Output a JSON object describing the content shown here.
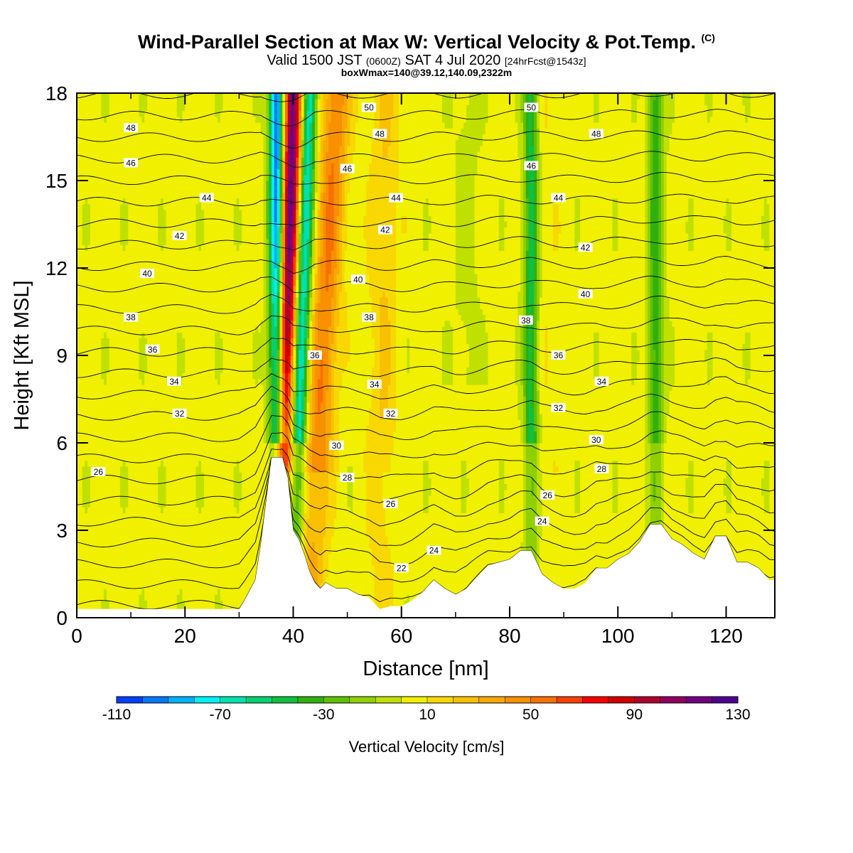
{
  "title": {
    "main": "Wind-Parallel Section at Max W: Vertical Velocity & Pot.Temp.",
    "copyright": "(C)",
    "valid_prefix": "Valid 1500 JST",
    "valid_utc": "(0600Z)",
    "valid_date": "SAT 4 Jul 2020",
    "forecast": "[24hrFcst@1543z]",
    "boxmax": "boxWmax=140@39.12,140.09,2322m"
  },
  "chart_data": {
    "type": "heatmap",
    "xlabel": "Distance [nm]",
    "ylabel": "Height [Kft MSL]",
    "xlim": [
      0,
      129
    ],
    "ylim": [
      0,
      18
    ],
    "xticks": [
      "0",
      "20",
      "40",
      "60",
      "80",
      "100",
      "120"
    ],
    "yticks": [
      "0",
      "3",
      "6",
      "9",
      "12",
      "15",
      "18"
    ],
    "colorbar": {
      "label": "Vertical Velocity [cm/s]",
      "tick_labels": [
        "-110",
        "-70",
        "-30",
        "10",
        "50",
        "90",
        "130"
      ],
      "bins": [
        -110,
        -100,
        -90,
        -80,
        -70,
        -60,
        -50,
        -40,
        -30,
        -20,
        -10,
        0,
        10,
        20,
        30,
        40,
        50,
        60,
        70,
        80,
        90,
        100,
        110,
        120,
        130
      ],
      "colors": [
        "#0000f0",
        "#0040f8",
        "#0078f8",
        "#00b0f8",
        "#00f0f8",
        "#00e0b0",
        "#00d070",
        "#10c040",
        "#30b010",
        "#60c000",
        "#90d000",
        "#c0e000",
        "#f0f000",
        "#f8d800",
        "#f8c000",
        "#f8a800",
        "#f89000",
        "#f87000",
        "#f84000",
        "#f80000",
        "#d00000",
        "#b00030",
        "#900060",
        "#700080",
        "#500090"
      ]
    },
    "updraft_axes": [
      {
        "x_bottom": 37,
        "x_top": 40,
        "w_max": 130
      },
      {
        "x_bottom": 43,
        "x_top": 48,
        "w_max": 60
      },
      {
        "x_bottom": 56,
        "x_top": 57,
        "w_max": 30
      },
      {
        "x_bottom": 86,
        "x_top": 86,
        "w_max": 20
      }
    ],
    "downdraft_axes": [
      {
        "x_bottom": 37,
        "x_top": 37,
        "w_min": -100
      },
      {
        "x_bottom": 40,
        "x_top": 43,
        "w_min": -70
      },
      {
        "x_bottom": 84,
        "x_top": 84,
        "w_min": -40
      },
      {
        "x_bottom": 107,
        "x_top": 107,
        "w_min": -30
      }
    ],
    "terrain": {
      "x": [
        0,
        30,
        31,
        33,
        34,
        35,
        36,
        38,
        39,
        40,
        41,
        42,
        43,
        44,
        45,
        46,
        48,
        50,
        52,
        54,
        56,
        58,
        60,
        62,
        64,
        66,
        68,
        70,
        72,
        74,
        76,
        78,
        80,
        82,
        84,
        86,
        88,
        90,
        92,
        94,
        96,
        98,
        100,
        102,
        104,
        106,
        108,
        110,
        112,
        114,
        116,
        118,
        120,
        122,
        124,
        126,
        128,
        129
      ],
      "height_kft": [
        0.3,
        0.3,
        0.6,
        1.3,
        2.5,
        4.0,
        5.5,
        5.5,
        4.8,
        3.0,
        2.7,
        2.2,
        1.6,
        1.2,
        1.0,
        1.2,
        1.0,
        1.0,
        0.8,
        0.7,
        0.3,
        0.4,
        0.4,
        0.6,
        0.9,
        1.3,
        1.0,
        0.8,
        1.0,
        1.4,
        1.8,
        1.9,
        2.0,
        2.3,
        2.3,
        1.5,
        1.2,
        1.0,
        1.0,
        1.2,
        1.7,
        1.7,
        2.0,
        2.2,
        2.6,
        3.2,
        3.2,
        2.7,
        2.5,
        2.2,
        2.0,
        2.8,
        2.8,
        1.9,
        1.9,
        1.7,
        1.3,
        1.3
      ]
    },
    "contours": {
      "field": "potential_temperature",
      "interval": 1,
      "base_kft": 0.2,
      "base_value": 21,
      "spacing_kft": 0.74
    },
    "contour_labels": [
      {
        "text": "26",
        "x": 4,
        "y": 5.0
      },
      {
        "text": "32",
        "x": 19,
        "y": 7.0
      },
      {
        "text": "34",
        "x": 18,
        "y": 8.1
      },
      {
        "text": "36",
        "x": 14,
        "y": 9.2
      },
      {
        "text": "38",
        "x": 10,
        "y": 10.3
      },
      {
        "text": "40",
        "x": 13,
        "y": 11.8
      },
      {
        "text": "42",
        "x": 19,
        "y": 13.1
      },
      {
        "text": "44",
        "x": 24,
        "y": 14.4
      },
      {
        "text": "46",
        "x": 10,
        "y": 15.6
      },
      {
        "text": "48",
        "x": 10,
        "y": 16.8
      },
      {
        "text": "30",
        "x": 48,
        "y": 5.9
      },
      {
        "text": "28",
        "x": 50,
        "y": 4.8
      },
      {
        "text": "26",
        "x": 58,
        "y": 3.9
      },
      {
        "text": "24",
        "x": 66,
        "y": 2.3
      },
      {
        "text": "22",
        "x": 60,
        "y": 1.7
      },
      {
        "text": "36",
        "x": 44,
        "y": 9.0
      },
      {
        "text": "34",
        "x": 55,
        "y": 8.0
      },
      {
        "text": "32",
        "x": 58,
        "y": 7.0
      },
      {
        "text": "38",
        "x": 54,
        "y": 10.3
      },
      {
        "text": "40",
        "x": 52,
        "y": 11.6
      },
      {
        "text": "42",
        "x": 57,
        "y": 13.3
      },
      {
        "text": "44",
        "x": 59,
        "y": 14.4
      },
      {
        "text": "46",
        "x": 50,
        "y": 15.4
      },
      {
        "text": "48",
        "x": 56,
        "y": 16.6
      },
      {
        "text": "50",
        "x": 54,
        "y": 17.5
      },
      {
        "text": "26",
        "x": 87,
        "y": 4.2
      },
      {
        "text": "24",
        "x": 86,
        "y": 3.3
      },
      {
        "text": "28",
        "x": 97,
        "y": 5.1
      },
      {
        "text": "30",
        "x": 96,
        "y": 6.1
      },
      {
        "text": "32",
        "x": 89,
        "y": 7.2
      },
      {
        "text": "34",
        "x": 97,
        "y": 8.1
      },
      {
        "text": "36",
        "x": 89,
        "y": 9.0
      },
      {
        "text": "38",
        "x": 83,
        "y": 10.2
      },
      {
        "text": "40",
        "x": 94,
        "y": 11.1
      },
      {
        "text": "42",
        "x": 94,
        "y": 12.7
      },
      {
        "text": "44",
        "x": 89,
        "y": 14.4
      },
      {
        "text": "46",
        "x": 84,
        "y": 15.5
      },
      {
        "text": "48",
        "x": 96,
        "y": 16.6
      },
      {
        "text": "50",
        "x": 84,
        "y": 17.5
      }
    ]
  }
}
